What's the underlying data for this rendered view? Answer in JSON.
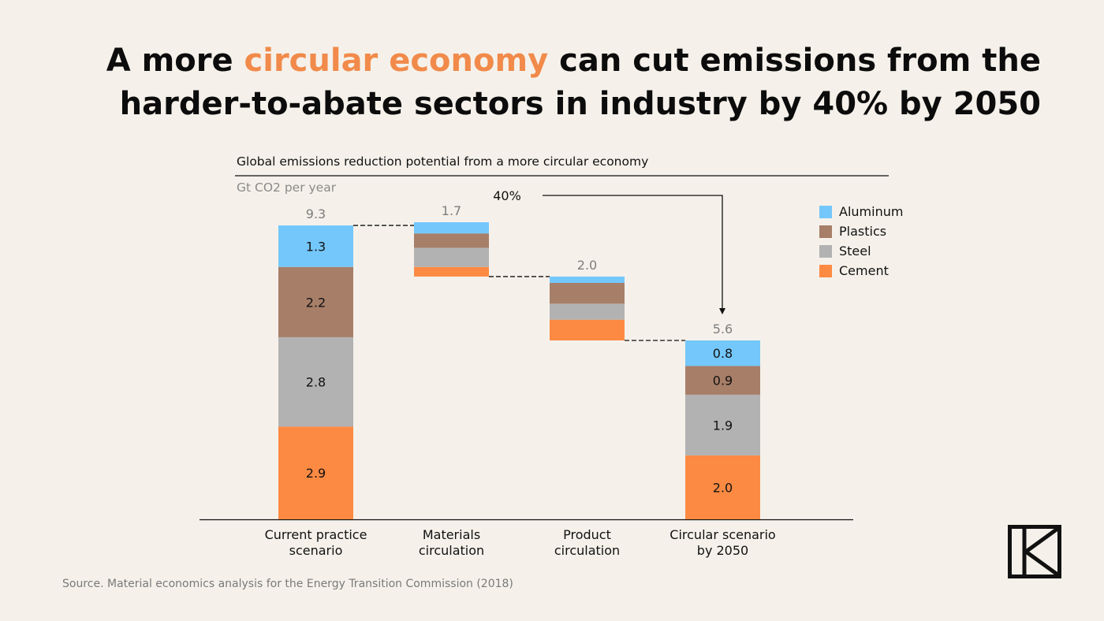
{
  "headline": {
    "pre": "A more ",
    "highlight": "circular economy",
    "post": " can cut emissions from the harder-to-abate sectors in industry by 40% by 2050"
  },
  "colors": {
    "background": "#f5f1ea",
    "highlight": "#f18a4a",
    "Aluminum": "#74c7fb",
    "Plastics": "#a77e68",
    "Steel": "#b2b2b2",
    "Cement": "#fd8a43"
  },
  "chart_data": {
    "type": "bar",
    "subtype": "stacked-waterfall",
    "title": "Global emissions reduction potential from a more circular economy",
    "ylabel": "Gt CO2 per year",
    "ylim": [
      0,
      9.3
    ],
    "grid": false,
    "legend_position": "top-right",
    "categories": [
      "Current practice scenario",
      "Materials circulation",
      "Product circulation",
      "Circular scenario by 2050"
    ],
    "totals": [
      "9.3",
      "1.7",
      "2.0",
      "5.6"
    ],
    "bars": [
      {
        "kind": "total",
        "base": 0,
        "segments": [
          {
            "series": "Cement",
            "value": 2.9,
            "label": "2.9"
          },
          {
            "series": "Steel",
            "value": 2.8,
            "label": "2.8"
          },
          {
            "series": "Plastics",
            "value": 2.2,
            "label": "2.2"
          },
          {
            "series": "Aluminum",
            "value": 1.3,
            "label": "1.3"
          }
        ]
      },
      {
        "kind": "reduction",
        "base": 7.6,
        "segments": [
          {
            "series": "Cement",
            "value": 0.3,
            "label": ""
          },
          {
            "series": "Steel",
            "value": 0.6,
            "label": ""
          },
          {
            "series": "Plastics",
            "value": 0.45,
            "label": ""
          },
          {
            "series": "Aluminum",
            "value": 0.35,
            "label": ""
          }
        ]
      },
      {
        "kind": "reduction",
        "base": 5.6,
        "segments": [
          {
            "series": "Cement",
            "value": 0.65,
            "label": ""
          },
          {
            "series": "Steel",
            "value": 0.5,
            "label": ""
          },
          {
            "series": "Plastics",
            "value": 0.65,
            "label": ""
          },
          {
            "series": "Aluminum",
            "value": 0.2,
            "label": ""
          }
        ]
      },
      {
        "kind": "total",
        "base": 0,
        "segments": [
          {
            "series": "Cement",
            "value": 2.0,
            "label": "2.0"
          },
          {
            "series": "Steel",
            "value": 1.9,
            "label": "1.9"
          },
          {
            "series": "Plastics",
            "value": 0.9,
            "label": "0.9"
          },
          {
            "series": "Aluminum",
            "value": 0.8,
            "label": "0.8"
          }
        ]
      }
    ],
    "legend": [
      "Aluminum",
      "Plastics",
      "Steel",
      "Cement"
    ],
    "annotation": "40%"
  },
  "source": "Source. Material economics analysis for the Energy Transition Commission (2018)"
}
